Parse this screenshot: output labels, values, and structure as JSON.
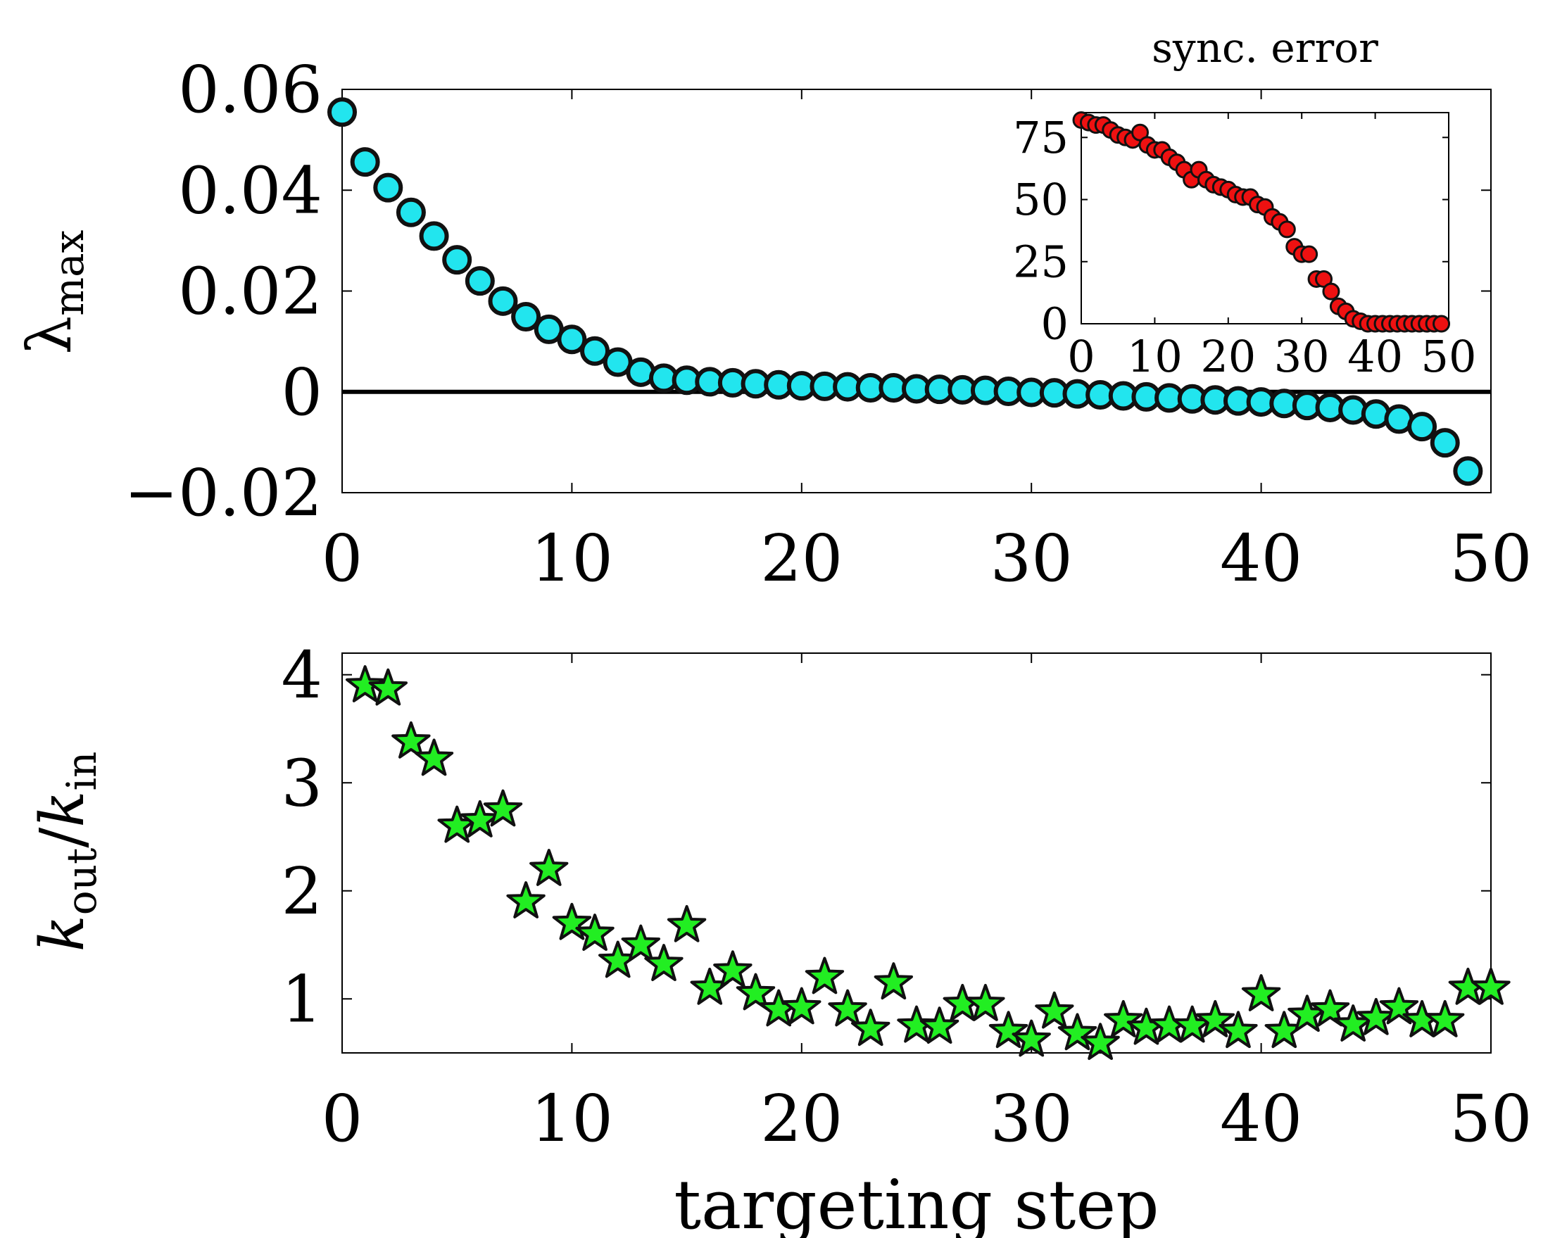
{
  "chart_data": [
    {
      "type": "scatter",
      "name": "lambda-max-panel",
      "title": "",
      "xlabel": "",
      "ylabel_symbol": "λ",
      "ylabel_subscript": "max",
      "xlim": [
        0,
        50
      ],
      "ylim": [
        -0.02,
        0.06
      ],
      "xticks": [
        0,
        10,
        20,
        30,
        40,
        50
      ],
      "xtick_labels": [
        "0",
        "10",
        "20",
        "30",
        "40",
        "50"
      ],
      "yticks": [
        -0.02,
        0,
        0.02,
        0.04,
        0.06
      ],
      "ytick_labels": [
        "−0.02",
        "0",
        "0.02",
        "0.04",
        "0.06"
      ],
      "reference_line_y": 0,
      "marker": "circle",
      "marker_color": "#22e5ee",
      "series": [
        {
          "name": "lambda_max",
          "x": [
            0,
            1,
            2,
            3,
            4,
            5,
            6,
            7,
            8,
            9,
            10,
            11,
            12,
            13,
            14,
            15,
            16,
            17,
            18,
            19,
            20,
            21,
            22,
            23,
            24,
            25,
            26,
            27,
            28,
            29,
            30,
            31,
            32,
            33,
            34,
            35,
            36,
            37,
            38,
            39,
            40,
            41,
            42,
            43,
            44,
            45,
            46,
            47,
            48,
            49
          ],
          "y": [
            0.0555,
            0.0456,
            0.0405,
            0.0356,
            0.0309,
            0.0262,
            0.022,
            0.018,
            0.0149,
            0.0124,
            0.0104,
            0.0081,
            0.0059,
            0.0039,
            0.0027,
            0.0023,
            0.002,
            0.0018,
            0.0016,
            0.0014,
            0.0012,
            0.0011,
            0.001,
            0.0008,
            0.0008,
            0.0006,
            0.0005,
            0.0004,
            0.0003,
            0.0001,
            -0.0001,
            -0.0002,
            -0.0004,
            -0.0006,
            -0.0008,
            -0.001,
            -0.0012,
            -0.0014,
            -0.0016,
            -0.0018,
            -0.002,
            -0.0023,
            -0.0027,
            -0.0031,
            -0.0036,
            -0.0044,
            -0.0054,
            -0.0069,
            -0.0101,
            -0.0157
          ]
        }
      ],
      "inset": {
        "type": "scatter",
        "title": "sync. error",
        "xlim": [
          0,
          50
        ],
        "ylim": [
          0,
          85
        ],
        "xticks": [
          0,
          10,
          20,
          30,
          40,
          50
        ],
        "xtick_labels": [
          "0",
          "10",
          "20",
          "30",
          "40",
          "50"
        ],
        "yticks": [
          0,
          25,
          50,
          75
        ],
        "ytick_labels": [
          "0",
          "25",
          "50",
          "75"
        ],
        "marker": "circle",
        "marker_color": "#ee1111",
        "series": [
          {
            "name": "sync_error",
            "x": [
              0,
              1,
              2,
              3,
              4,
              5,
              6,
              7,
              8,
              9,
              10,
              11,
              12,
              13,
              14,
              15,
              16,
              17,
              18,
              19,
              20,
              21,
              22,
              23,
              24,
              25,
              26,
              27,
              28,
              29,
              30,
              31,
              32,
              33,
              34,
              35,
              36,
              37,
              38,
              39,
              40,
              41,
              42,
              43,
              44,
              45,
              46,
              47,
              48,
              49
            ],
            "y": [
              82,
              81,
              80,
              80,
              78,
              76,
              75,
              74,
              77,
              72,
              70,
              70,
              67,
              65,
              62,
              58,
              62,
              58,
              56,
              55,
              54,
              52,
              51,
              51,
              48,
              47,
              43,
              41,
              38,
              31,
              28,
              28,
              18,
              18,
              13,
              7,
              5,
              2,
              1,
              0,
              0,
              0,
              0,
              0,
              0,
              0,
              0,
              0,
              0,
              0
            ]
          }
        ]
      }
    },
    {
      "type": "scatter",
      "name": "degree-ratio-panel",
      "title": "",
      "xlabel": "targeting step",
      "ylabel_parts": [
        "k",
        "out",
        "/",
        "k",
        "in"
      ],
      "xlim": [
        0,
        50
      ],
      "ylim": [
        0.5,
        4.2
      ],
      "xticks": [
        0,
        10,
        20,
        30,
        40,
        50
      ],
      "xtick_labels": [
        "0",
        "10",
        "20",
        "30",
        "40",
        "50"
      ],
      "yticks": [
        1,
        2,
        3,
        4
      ],
      "ytick_labels": [
        "1",
        "2",
        "3",
        "4"
      ],
      "marker": "star",
      "marker_color": "#22ee22",
      "series": [
        {
          "name": "kout_over_kin",
          "x": [
            1,
            2,
            3,
            4,
            5,
            6,
            7,
            8,
            9,
            10,
            11,
            12,
            13,
            14,
            15,
            16,
            17,
            18,
            19,
            20,
            21,
            22,
            23,
            24,
            25,
            26,
            27,
            28,
            29,
            30,
            31,
            32,
            33,
            34,
            35,
            36,
            37,
            38,
            39,
            40,
            41,
            42,
            43,
            44,
            45,
            46,
            47,
            48,
            49,
            50
          ],
          "y": [
            3.9,
            3.87,
            3.38,
            3.22,
            2.6,
            2.65,
            2.75,
            1.9,
            2.2,
            1.7,
            1.6,
            1.35,
            1.5,
            1.32,
            1.68,
            1.1,
            1.26,
            1.05,
            0.9,
            0.92,
            1.2,
            0.9,
            0.72,
            1.15,
            0.75,
            0.74,
            0.95,
            0.95,
            0.7,
            0.62,
            0.88,
            0.68,
            0.59,
            0.8,
            0.73,
            0.75,
            0.75,
            0.8,
            0.7,
            1.04,
            0.7,
            0.85,
            0.9,
            0.76,
            0.82,
            0.92,
            0.8,
            0.8,
            1.1,
            1.1
          ]
        }
      ]
    }
  ]
}
